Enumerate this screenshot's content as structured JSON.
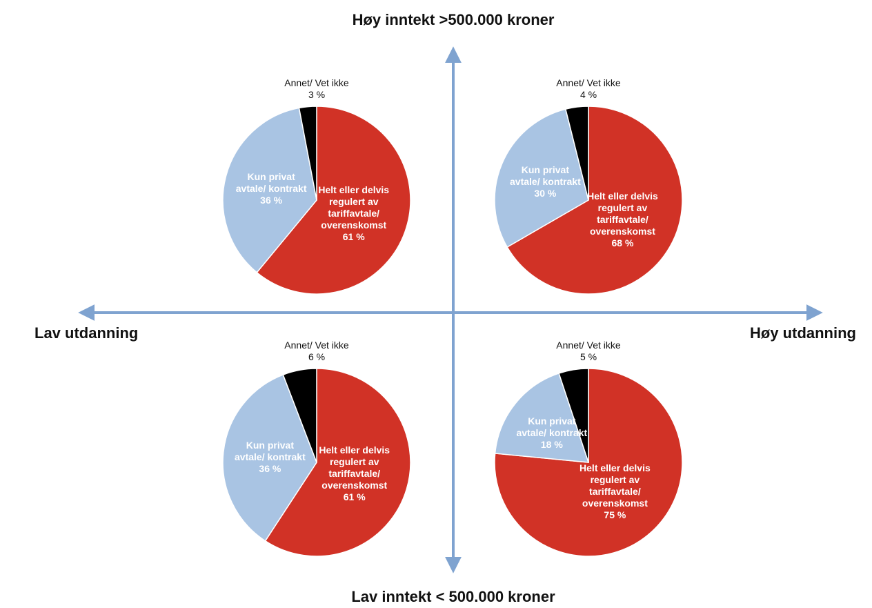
{
  "axes": {
    "top": "Høy inntekt >500.000 kroner",
    "bottom": "Lav inntekt < 500.000 kroner",
    "left": "Lav utdanning",
    "right": "Høy utdanning"
  },
  "chart_data": [
    {
      "type": "pie",
      "categories": [
        "Helt eller delvis regulert av tariffavtale/ overenskomst",
        "Kun privat avtale/ kontrakt",
        "Annet/ Vet ikke"
      ],
      "values": [
        61,
        36,
        3
      ],
      "value_labels": [
        "61 %",
        "36 %",
        "3 %"
      ],
      "colors": [
        "#d13226",
        "#a9c4e3",
        "#000000"
      ]
    },
    {
      "type": "pie",
      "categories": [
        "Helt eller delvis regulert av tariffavtale/ overenskomst",
        "Kun privat avtale/ kontrakt",
        "Annet/ Vet ikke"
      ],
      "values": [
        68,
        30,
        4
      ],
      "value_labels": [
        "68 %",
        "30 %",
        "4 %"
      ],
      "colors": [
        "#d13226",
        "#a9c4e3",
        "#000000"
      ]
    },
    {
      "type": "pie",
      "categories": [
        "Helt eller delvis regulert av tariffavtale/ overenskomst",
        "Kun privat avtale/ kontrakt",
        "Annet/ Vet ikke"
      ],
      "values": [
        61,
        36,
        6
      ],
      "value_labels": [
        "61 %",
        "36 %",
        "6 %"
      ],
      "colors": [
        "#d13226",
        "#a9c4e3",
        "#000000"
      ]
    },
    {
      "type": "pie",
      "categories": [
        "Helt eller delvis regulert av tariffavtale/ overenskomst",
        "Kun privat avtale/ kontrakt",
        "Annet/ Vet ikke"
      ],
      "values": [
        75,
        18,
        5
      ],
      "value_labels": [
        "75 %",
        "18 %",
        "5 %"
      ],
      "colors": [
        "#d13226",
        "#a9c4e3",
        "#000000"
      ]
    }
  ]
}
